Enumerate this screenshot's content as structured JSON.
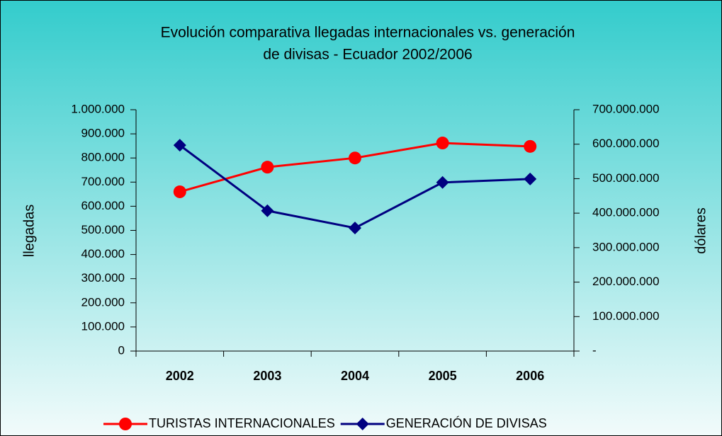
{
  "chart_data": {
    "type": "line",
    "title": [
      "Evolución comparativa llegadas internacionales vs. generación",
      "de divisas - Ecuador 2002/2006"
    ],
    "categories": [
      "2002",
      "2003",
      "2004",
      "2005",
      "2006"
    ],
    "ylabel": "llegadas",
    "y2label": "dólares",
    "ylim": [
      0,
      1000000
    ],
    "yticks": [
      0,
      {
        "value": 100000,
        "label": "100.000"
      },
      {
        "value": 200000,
        "label": "200.000"
      },
      {
        "value": 300000,
        "label": "300.000"
      },
      {
        "value": 400000,
        "label": "400.000"
      },
      {
        "value": 500000,
        "label": "500.000"
      },
      {
        "value": 600000,
        "label": "600.000"
      },
      {
        "value": 700000,
        "label": "700.000"
      },
      {
        "value": 800000,
        "label": "800.000"
      },
      {
        "value": 900000,
        "label": "900.000"
      },
      {
        "value": 1000000,
        "label": "1.000.000"
      }
    ],
    "y2lim": [
      0,
      700000000
    ],
    "y2ticks": [
      {
        "value": 0,
        "label": "-"
      },
      {
        "value": 100000000,
        "label": "100.000.000"
      },
      {
        "value": 200000000,
        "label": "200.000.000"
      },
      {
        "value": 300000000,
        "label": "300.000.000"
      },
      {
        "value": 400000000,
        "label": "400.000.000"
      },
      {
        "value": 500000000,
        "label": "500.000.000"
      },
      {
        "value": 600000000,
        "label": "600.000.000"
      },
      {
        "value": 700000000,
        "label": "700.000.000"
      }
    ],
    "series": [
      {
        "name": "TURISTAS INTERNACIONALES",
        "color": "#ff0000",
        "marker": "circle",
        "values": [
          660000,
          762000,
          800000,
          862000,
          848000
        ]
      },
      {
        "name": "GENERACIÓN DE DIVISAS",
        "color": "#000080",
        "marker": "diamond",
        "axis": "y2",
        "values": [
          597000000,
          407000000,
          357000000,
          489000000,
          499000000
        ]
      }
    ]
  }
}
